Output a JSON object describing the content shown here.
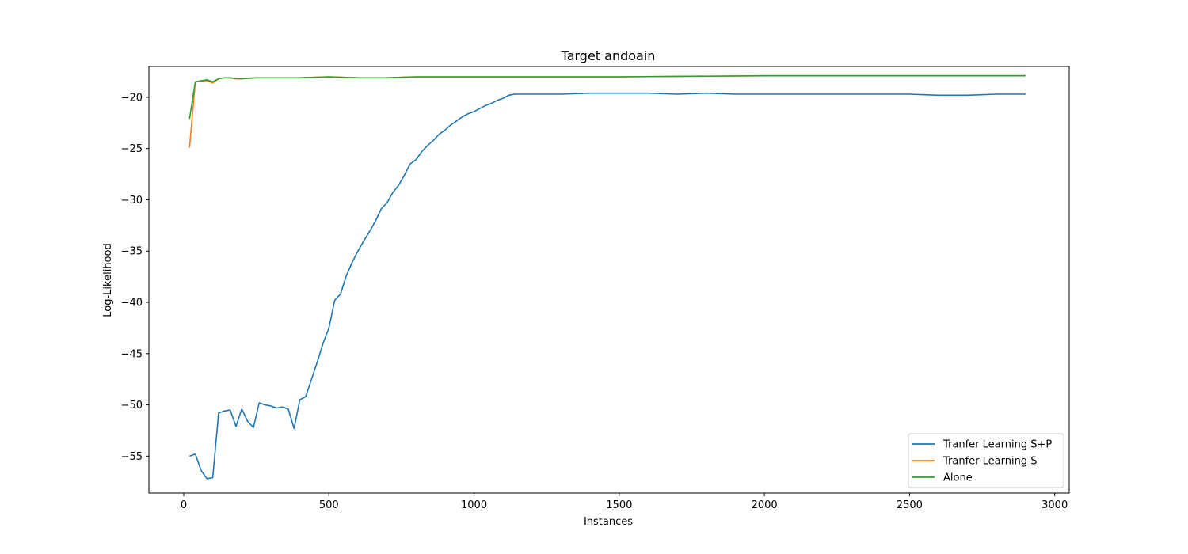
{
  "chart_data": {
    "type": "line",
    "title": "Target andoain",
    "xlabel": "Instances",
    "ylabel": "Log-Likelihood",
    "xlim": [
      -120,
      3050
    ],
    "ylim": [
      -58.6,
      -17.0
    ],
    "xticks": [
      0,
      500,
      1000,
      1500,
      2000,
      2500,
      3000
    ],
    "yticks": [
      -55,
      -50,
      -45,
      -40,
      -35,
      -30,
      -25,
      -20
    ],
    "xtick_labels": [
      "0",
      "500",
      "1000",
      "1500",
      "2000",
      "2500",
      "3000"
    ],
    "ytick_labels": [
      "−55",
      "−50",
      "−45",
      "−40",
      "−35",
      "−30",
      "−25",
      "−20"
    ],
    "legend_position": "lower right",
    "series": [
      {
        "name": "Tranfer Learning S+P",
        "color": "#1f77b4",
        "x": [
          20,
          40,
          60,
          80,
          100,
          120,
          140,
          160,
          180,
          200,
          220,
          240,
          260,
          280,
          300,
          320,
          340,
          360,
          380,
          400,
          420,
          440,
          460,
          480,
          500,
          520,
          540,
          560,
          580,
          600,
          620,
          640,
          660,
          680,
          700,
          720,
          740,
          760,
          780,
          800,
          820,
          840,
          860,
          880,
          900,
          920,
          940,
          960,
          980,
          1000,
          1020,
          1040,
          1060,
          1080,
          1100,
          1120,
          1140,
          1160,
          1180,
          1200,
          1300,
          1400,
          1500,
          1600,
          1700,
          1800,
          1900,
          2000,
          2100,
          2200,
          2300,
          2400,
          2500,
          2600,
          2700,
          2800,
          2900
        ],
        "y": [
          -55.0,
          -54.8,
          -56.4,
          -57.2,
          -57.1,
          -50.8,
          -50.6,
          -50.5,
          -52.1,
          -50.4,
          -51.6,
          -52.2,
          -49.8,
          -50.0,
          -50.1,
          -50.3,
          -50.2,
          -50.4,
          -52.3,
          -49.5,
          -49.2,
          -47.5,
          -45.8,
          -44.0,
          -42.5,
          -39.8,
          -39.2,
          -37.4,
          -36.1,
          -35.0,
          -34.0,
          -33.1,
          -32.1,
          -30.9,
          -30.3,
          -29.3,
          -28.6,
          -27.6,
          -26.5,
          -26.1,
          -25.3,
          -24.7,
          -24.2,
          -23.6,
          -23.2,
          -22.7,
          -22.3,
          -21.9,
          -21.6,
          -21.4,
          -21.1,
          -20.8,
          -20.6,
          -20.3,
          -20.1,
          -19.8,
          -19.7,
          -19.7,
          -19.7,
          -19.7,
          -19.7,
          -19.6,
          -19.6,
          -19.6,
          -19.7,
          -19.6,
          -19.7,
          -19.7,
          -19.7,
          -19.7,
          -19.7,
          -19.7,
          -19.7,
          -19.8,
          -19.8,
          -19.7,
          -19.7
        ]
      },
      {
        "name": "Tranfer Learning S",
        "color": "#ff7f0e",
        "x": [
          20,
          40,
          60,
          80,
          100,
          120,
          140,
          160,
          180,
          200,
          250,
          300,
          400,
          500,
          600,
          700,
          800,
          1000,
          1500,
          2000,
          2500,
          2900
        ],
        "y": [
          -24.9,
          -18.5,
          -18.4,
          -18.4,
          -18.6,
          -18.2,
          -18.1,
          -18.1,
          -18.2,
          -18.2,
          -18.1,
          -18.1,
          -18.1,
          -18.0,
          -18.1,
          -18.1,
          -18.0,
          -18.0,
          -18.0,
          -17.9,
          -17.9,
          -17.9
        ]
      },
      {
        "name": "Alone",
        "color": "#2ca02c",
        "x": [
          20,
          40,
          60,
          80,
          100,
          120,
          140,
          160,
          180,
          200,
          250,
          300,
          400,
          500,
          600,
          700,
          800,
          1000,
          1500,
          2000,
          2500,
          2900
        ],
        "y": [
          -22.1,
          -18.5,
          -18.4,
          -18.3,
          -18.5,
          -18.2,
          -18.1,
          -18.1,
          -18.2,
          -18.2,
          -18.1,
          -18.1,
          -18.1,
          -18.0,
          -18.1,
          -18.1,
          -18.0,
          -18.0,
          -18.0,
          -17.9,
          -17.9,
          -17.9
        ]
      }
    ]
  }
}
